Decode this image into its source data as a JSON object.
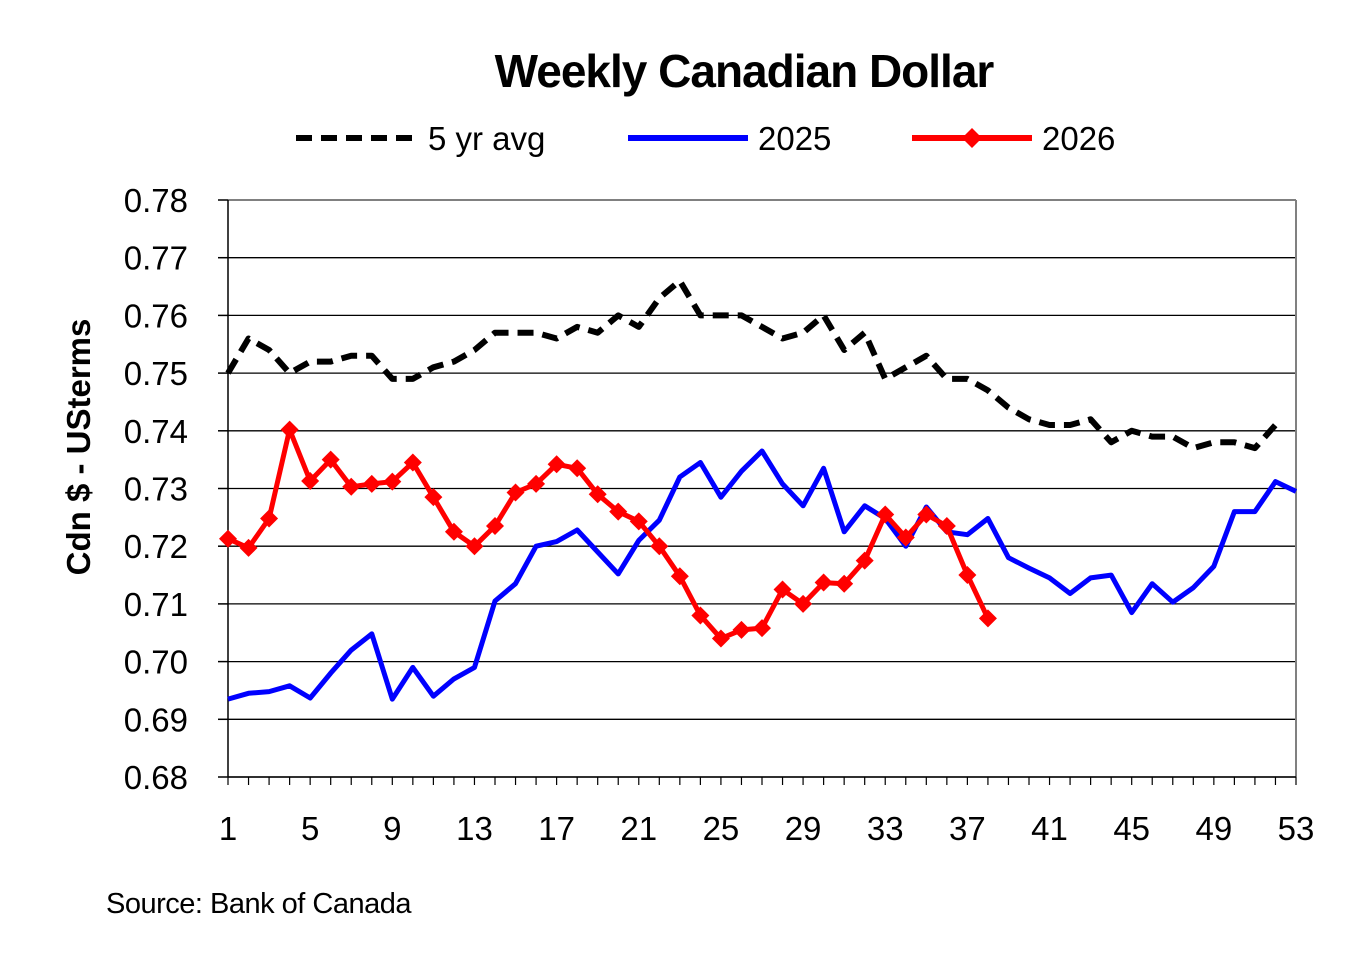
{
  "chart_data": {
    "type": "line",
    "title": "Weekly Canadian Dollar",
    "xlabel": "",
    "ylabel": "Cdn $ - USterms",
    "source": "Source: Bank of Canada",
    "xlim": [
      1,
      53
    ],
    "ylim": [
      0.68,
      0.78
    ],
    "x_ticks": [
      1,
      5,
      9,
      13,
      17,
      21,
      25,
      29,
      33,
      37,
      41,
      45,
      49,
      53
    ],
    "y_ticks": [
      "0.68",
      "0.69",
      "0.70",
      "0.71",
      "0.72",
      "0.73",
      "0.74",
      "0.75",
      "0.76",
      "0.77",
      "0.78"
    ],
    "grid": "horizontal",
    "legend_position": "top",
    "series": [
      {
        "name": "5 yr avg",
        "color": "#000000",
        "style": "dashed",
        "x": [
          1,
          2,
          3,
          4,
          5,
          6,
          7,
          8,
          9,
          10,
          11,
          12,
          13,
          14,
          15,
          16,
          17,
          18,
          19,
          20,
          21,
          22,
          23,
          24,
          25,
          26,
          27,
          28,
          29,
          30,
          31,
          32,
          33,
          34,
          35,
          36,
          37,
          38,
          39,
          40,
          41,
          42,
          43,
          44,
          45,
          46,
          47,
          48,
          49,
          50,
          51,
          52
        ],
        "values": [
          0.75,
          0.756,
          0.754,
          0.75,
          0.752,
          0.752,
          0.753,
          0.753,
          0.749,
          0.749,
          0.751,
          0.752,
          0.754,
          0.757,
          0.757,
          0.757,
          0.756,
          0.758,
          0.757,
          0.76,
          0.758,
          0.763,
          0.766,
          0.76,
          0.76,
          0.76,
          0.758,
          0.756,
          0.757,
          0.76,
          0.754,
          0.757,
          0.749,
          0.751,
          0.753,
          0.749,
          0.749,
          0.747,
          0.744,
          0.742,
          0.741,
          0.741,
          0.742,
          0.738,
          0.74,
          0.739,
          0.739,
          0.737,
          0.738,
          0.738,
          0.737,
          0.741
        ]
      },
      {
        "name": "2025",
        "color": "#0000ff",
        "style": "solid",
        "x": [
          1,
          2,
          3,
          4,
          5,
          6,
          7,
          8,
          9,
          10,
          11,
          12,
          13,
          14,
          15,
          16,
          17,
          18,
          19,
          20,
          21,
          22,
          23,
          24,
          25,
          26,
          27,
          28,
          29,
          30,
          31,
          32,
          33,
          34,
          35,
          36,
          37,
          38,
          39,
          40,
          41,
          42,
          43,
          44,
          45,
          46,
          47,
          48,
          49,
          50,
          51,
          52,
          53
        ],
        "values": [
          0.6935,
          0.6945,
          0.6948,
          0.6958,
          0.6937,
          0.698,
          0.702,
          0.7048,
          0.6935,
          0.699,
          0.694,
          0.697,
          0.699,
          0.7105,
          0.7135,
          0.72,
          0.7208,
          0.7228,
          0.719,
          0.7152,
          0.721,
          0.7245,
          0.732,
          0.7345,
          0.7285,
          0.733,
          0.7365,
          0.7308,
          0.727,
          0.7335,
          0.7225,
          0.727,
          0.7248,
          0.72,
          0.7268,
          0.7225,
          0.722,
          0.7248,
          0.718,
          0.7162,
          0.7145,
          0.7118,
          0.7145,
          0.715,
          0.7085,
          0.7135,
          0.7103,
          0.7128,
          0.7165,
          0.726,
          0.726,
          0.7312,
          0.7295
        ]
      },
      {
        "name": "2026",
        "color": "#ff0000",
        "style": "solid-diamond",
        "x": [
          1,
          2,
          3,
          4,
          5,
          6,
          7,
          8,
          9,
          10,
          11,
          12,
          13,
          14,
          15,
          16,
          17,
          18,
          19,
          20,
          21,
          22,
          23,
          24,
          25,
          26,
          27,
          28,
          29,
          30,
          31,
          32,
          33,
          34,
          35,
          36,
          37,
          38
        ],
        "values": [
          0.7213,
          0.7197,
          0.7248,
          0.7402,
          0.7313,
          0.735,
          0.7303,
          0.7308,
          0.7312,
          0.7345,
          0.7285,
          0.7225,
          0.72,
          0.7235,
          0.7293,
          0.7308,
          0.7342,
          0.7335,
          0.729,
          0.726,
          0.7243,
          0.72,
          0.7148,
          0.708,
          0.704,
          0.7055,
          0.7058,
          0.7125,
          0.71,
          0.7137,
          0.7135,
          0.7175,
          0.7255,
          0.7215,
          0.7255,
          0.7235,
          0.715,
          0.7075
        ]
      }
    ]
  }
}
